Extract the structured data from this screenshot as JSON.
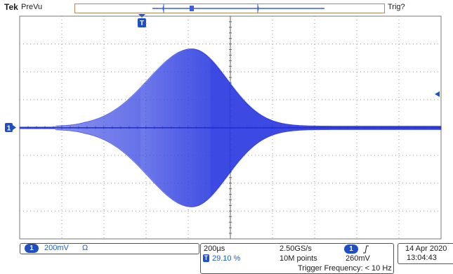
{
  "header": {
    "brand": "Tek",
    "mode": "PreVu",
    "trigger_status": "Trig?"
  },
  "markers": {
    "trigger_marker": "T",
    "channel_marker": "1"
  },
  "channel_panel": {
    "channel": "1",
    "volts_per_div": "200mV",
    "coupling": "Ω"
  },
  "timebase_panel": {
    "time_per_div": "200µs",
    "trigger_position": "29.10 %",
    "sample_rate": "2.50GS/s",
    "record_length": "10M points"
  },
  "trigger_panel": {
    "source": "1",
    "slope_symbol": "⎰",
    "level": "260mV",
    "frequency": "Trigger Frequency: < 10 Hz"
  },
  "datetime": {
    "date": "14 Apr  2020",
    "time": "13:04:43"
  },
  "colors": {
    "waveform": "#2a3ae0",
    "grid": "#9a9a9a",
    "badge": "#1f4fc8",
    "record_bar_border": "#b08a5a"
  }
}
